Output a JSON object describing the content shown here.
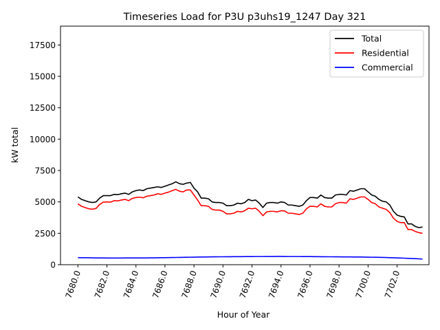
{
  "chart_data": {
    "type": "line",
    "title": "Timeseries Load for P3U p3uhs19_1247  Day 321",
    "xlabel": "Hour of Year",
    "ylabel": "kW total",
    "xlim": [
      7678.8,
      7704.2
    ],
    "ylim": [
      0,
      19000
    ],
    "x_ticks": [
      7680,
      7682,
      7684,
      7686,
      7688,
      7690,
      7692,
      7694,
      7696,
      7698,
      7700,
      7702
    ],
    "x_tick_labels": [
      "7680.0",
      "7682.0",
      "7684.0",
      "7686.0",
      "7688.0",
      "7690.0",
      "7692.0",
      "7694.0",
      "7696.0",
      "7698.0",
      "7700.0",
      "7702.0"
    ],
    "y_ticks": [
      0,
      2500,
      5000,
      7500,
      10000,
      12500,
      15000,
      17500
    ],
    "y_tick_labels": [
      "0",
      "2500",
      "5000",
      "7500",
      "10000",
      "12500",
      "15000",
      "17500"
    ],
    "legend_position": "top-right",
    "grid": false,
    "x": [
      7680.0,
      7680.25,
      7680.5,
      7680.75,
      7681.0,
      7681.25,
      7681.5,
      7681.75,
      7682.0,
      7682.25,
      7682.5,
      7682.75,
      7683.0,
      7683.25,
      7683.5,
      7683.75,
      7684.0,
      7684.25,
      7684.5,
      7684.75,
      7685.0,
      7685.25,
      7685.5,
      7685.75,
      7686.0,
      7686.25,
      7686.5,
      7686.75,
      7687.0,
      7687.25,
      7687.5,
      7687.75,
      7688.0,
      7688.25,
      7688.5,
      7688.75,
      7689.0,
      7689.25,
      7689.5,
      7689.75,
      7690.0,
      7690.25,
      7690.5,
      7690.75,
      7691.0,
      7691.25,
      7691.5,
      7691.75,
      7692.0,
      7692.25,
      7692.5,
      7692.75,
      7693.0,
      7693.25,
      7693.5,
      7693.75,
      7694.0,
      7694.25,
      7694.5,
      7694.75,
      7695.0,
      7695.25,
      7695.5,
      7695.75,
      7696.0,
      7696.25,
      7696.5,
      7696.75,
      7697.0,
      7697.25,
      7697.5,
      7697.75,
      7698.0,
      7698.25,
      7698.5,
      7698.75,
      7699.0,
      7699.25,
      7699.5,
      7699.75,
      7700.0,
      7700.25,
      7700.5,
      7700.75,
      7701.0,
      7701.25,
      7701.5,
      7701.75,
      7702.0,
      7702.25,
      7702.5,
      7702.75,
      7703.0,
      7703.25,
      7703.5,
      7703.75
    ],
    "series": [
      {
        "name": "Total",
        "color": "#000000",
        "values": [
          5400,
          5200,
          5100,
          5000,
          4950,
          5000,
          5300,
          5500,
          5500,
          5500,
          5600,
          5580,
          5650,
          5700,
          5600,
          5800,
          5900,
          5950,
          5900,
          6050,
          6100,
          6150,
          6200,
          6150,
          6250,
          6350,
          6450,
          6600,
          6450,
          6400,
          6500,
          6550,
          6100,
          5800,
          5300,
          5300,
          5250,
          5000,
          4950,
          4950,
          4900,
          4700,
          4700,
          4750,
          4900,
          4850,
          4950,
          5200,
          5100,
          5150,
          4900,
          4550,
          4900,
          4950,
          4950,
          4900,
          5000,
          4950,
          4750,
          4750,
          4700,
          4650,
          4750,
          5100,
          5350,
          5350,
          5300,
          5550,
          5350,
          5300,
          5300,
          5550,
          5600,
          5600,
          5550,
          5900,
          5850,
          5950,
          6050,
          6050,
          5800,
          5550,
          5450,
          5200,
          5050,
          5000,
          4750,
          4250,
          3950,
          3850,
          3800,
          3250,
          3250,
          3050,
          2950,
          3000
        ]
      },
      {
        "name": "Residential",
        "color": "#ff0000",
        "values": [
          4850,
          4650,
          4550,
          4450,
          4420,
          4480,
          4800,
          4980,
          5000,
          4980,
          5100,
          5080,
          5150,
          5200,
          5100,
          5280,
          5350,
          5380,
          5330,
          5450,
          5500,
          5550,
          5650,
          5600,
          5700,
          5780,
          5900,
          6000,
          5850,
          5800,
          5950,
          5950,
          5550,
          5150,
          4700,
          4700,
          4650,
          4400,
          4350,
          4350,
          4250,
          4050,
          4050,
          4100,
          4250,
          4200,
          4300,
          4500,
          4450,
          4500,
          4250,
          3900,
          4200,
          4250,
          4250,
          4200,
          4300,
          4280,
          4100,
          4100,
          4050,
          4000,
          4100,
          4450,
          4650,
          4650,
          4600,
          4850,
          4650,
          4600,
          4600,
          4850,
          4950,
          4950,
          4900,
          5250,
          5200,
          5300,
          5400,
          5400,
          5200,
          4950,
          4850,
          4600,
          4500,
          4400,
          4150,
          3700,
          3450,
          3350,
          3350,
          2800,
          2800,
          2650,
          2550,
          2500
        ]
      },
      {
        "name": "Commercial",
        "color": "#0000ff",
        "values": [
          560,
          560,
          555,
          550,
          545,
          540,
          540,
          535,
          530,
          530,
          530,
          530,
          530,
          535,
          535,
          535,
          535,
          540,
          540,
          540,
          545,
          545,
          550,
          555,
          560,
          565,
          570,
          575,
          580,
          585,
          590,
          595,
          600,
          605,
          610,
          615,
          620,
          625,
          625,
          630,
          630,
          635,
          635,
          640,
          640,
          640,
          645,
          645,
          645,
          650,
          650,
          650,
          655,
          655,
          655,
          660,
          660,
          655,
          650,
          650,
          650,
          650,
          645,
          645,
          645,
          640,
          640,
          635,
          635,
          630,
          630,
          625,
          625,
          620,
          620,
          620,
          615,
          615,
          610,
          605,
          600,
          595,
          590,
          585,
          580,
          570,
          560,
          550,
          540,
          530,
          520,
          505,
          490,
          480,
          465,
          450
        ]
      }
    ]
  }
}
